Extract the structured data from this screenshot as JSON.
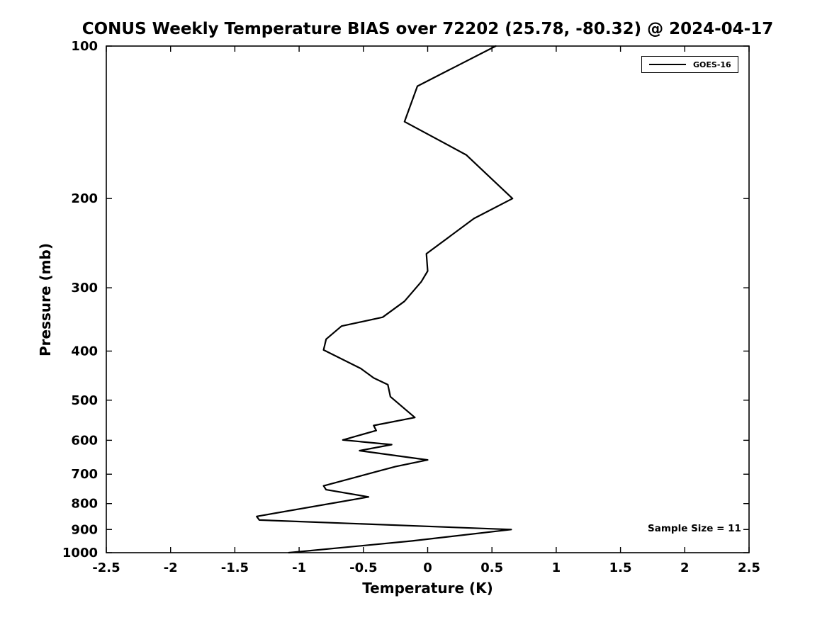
{
  "chart_data": {
    "type": "line",
    "title": "CONUS Weekly Temperature BIAS over 72202 (25.78, -80.32) @ 2024-04-17",
    "xlabel": "Temperature (K)",
    "ylabel": "Pressure (mb)",
    "xlim": [
      -2.5,
      2.5
    ],
    "ylim": [
      100,
      1000
    ],
    "yscale": "log10",
    "y_axis_direction": "pressure increases downward",
    "grid": false,
    "xticks": {
      "values": [
        -2.5,
        -2,
        -1.5,
        -1,
        -0.5,
        0,
        0.5,
        1,
        1.5,
        2,
        2.5
      ],
      "labels": [
        "-2.5",
        "-2",
        "-1.5",
        "-1",
        "-0.5",
        "0",
        "0.5",
        "1",
        "1.5",
        "2",
        "2.5"
      ]
    },
    "yticks": {
      "values": [
        100,
        200,
        300,
        400,
        500,
        600,
        700,
        800,
        900,
        1000
      ],
      "labels": [
        "100",
        "200",
        "300",
        "400",
        "500",
        "600",
        "700",
        "800",
        "900",
        "1000"
      ]
    },
    "legend": {
      "position": "top-right-inside",
      "entries": [
        {
          "label": "GOES-16",
          "color": "#000000",
          "line_width": 2
        }
      ]
    },
    "annotations": [
      {
        "text": "Sample Size = 11",
        "position": "inside-right-bottom"
      }
    ],
    "series": [
      {
        "name": "GOES-16",
        "color": "#000000",
        "point_format": "[temperature_bias_K, pressure_mb]",
        "points": [
          [
            0.53,
            100
          ],
          [
            -0.08,
            120
          ],
          [
            -0.18,
            141
          ],
          [
            0.3,
            164
          ],
          [
            0.66,
            200
          ],
          [
            0.36,
            219
          ],
          [
            -0.01,
            257
          ],
          [
            0.0,
            278
          ],
          [
            -0.05,
            292
          ],
          [
            -0.18,
            319
          ],
          [
            -0.35,
            343
          ],
          [
            -0.67,
            357
          ],
          [
            -0.79,
            379
          ],
          [
            -0.81,
            398
          ],
          [
            -0.52,
            433
          ],
          [
            -0.42,
            452
          ],
          [
            -0.31,
            466
          ],
          [
            -0.29,
            492
          ],
          [
            -0.1,
            541
          ],
          [
            -0.42,
            561
          ],
          [
            -0.4,
            574
          ],
          [
            -0.66,
            599
          ],
          [
            -0.28,
            612
          ],
          [
            -0.53,
            629
          ],
          [
            0.0,
            656
          ],
          [
            -0.25,
            676
          ],
          [
            -0.4,
            692
          ],
          [
            -0.81,
            738
          ],
          [
            -0.79,
            751
          ],
          [
            -0.46,
            776
          ],
          [
            -1.33,
            848
          ],
          [
            -1.31,
            862
          ],
          [
            0.65,
            900
          ],
          [
            -0.12,
            948
          ],
          [
            -1.08,
            1000
          ]
        ]
      }
    ]
  }
}
